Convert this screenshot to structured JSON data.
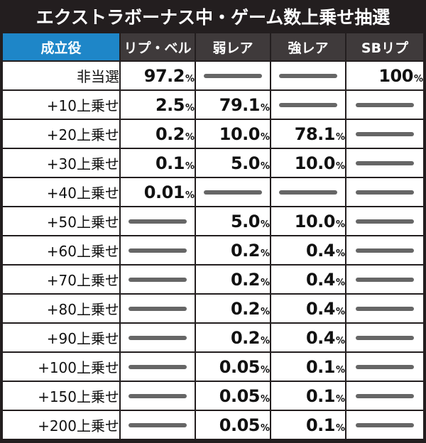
{
  "title": "エクストラボーナス中・ゲーム数上乗せ抽選",
  "columns": [
    "成立役",
    "リプ・ベル",
    "弱レア",
    "強レア",
    "SBリプ"
  ],
  "percent_sign": "%",
  "rows": [
    {
      "label": "非当選",
      "values": [
        "97.2",
        null,
        null,
        "100"
      ]
    },
    {
      "label": "+10上乗せ",
      "values": [
        "2.5",
        "79.1",
        null,
        null
      ]
    },
    {
      "label": "+20上乗せ",
      "values": [
        "0.2",
        "10.0",
        "78.1",
        null
      ]
    },
    {
      "label": "+30上乗せ",
      "values": [
        "0.1",
        "5.0",
        "10.0",
        null
      ]
    },
    {
      "label": "+40上乗せ",
      "values": [
        "0.01",
        null,
        null,
        null
      ]
    },
    {
      "label": "+50上乗せ",
      "values": [
        null,
        "5.0",
        "10.0",
        null
      ]
    },
    {
      "label": "+60上乗せ",
      "values": [
        null,
        "0.2",
        "0.4",
        null
      ]
    },
    {
      "label": "+70上乗せ",
      "values": [
        null,
        "0.2",
        "0.4",
        null
      ]
    },
    {
      "label": "+80上乗せ",
      "values": [
        null,
        "0.2",
        "0.4",
        null
      ]
    },
    {
      "label": "+90上乗せ",
      "values": [
        null,
        "0.2",
        "0.4",
        null
      ]
    },
    {
      "label": "+100上乗せ",
      "values": [
        null,
        "0.05",
        "0.1",
        null
      ]
    },
    {
      "label": "+150上乗せ",
      "values": [
        null,
        "0.05",
        "0.1",
        null
      ]
    },
    {
      "label": "+200上乗せ",
      "values": [
        null,
        "0.05",
        "0.1",
        null
      ]
    }
  ],
  "colors": {
    "header_accent": "#1e86c8",
    "header_bg": "#3f3a3b",
    "frame": "#231e1f",
    "dash": "#666666"
  }
}
